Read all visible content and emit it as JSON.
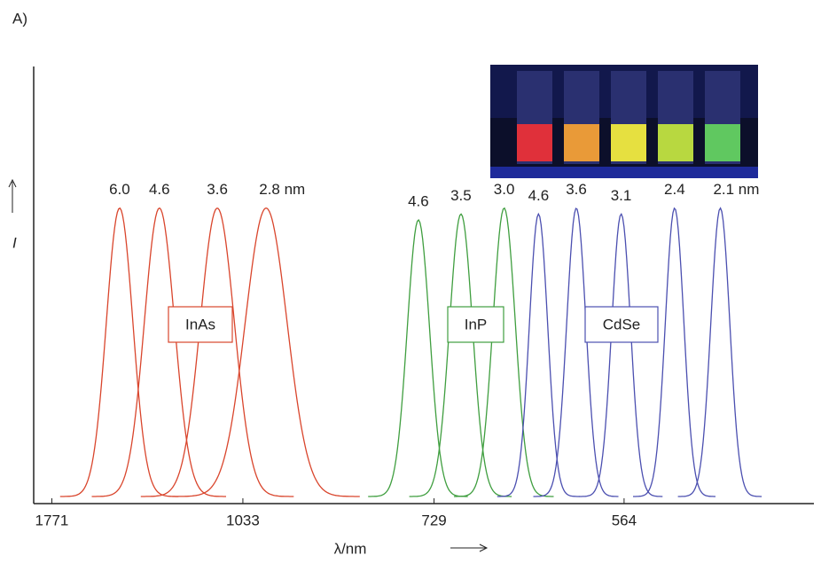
{
  "panel_label": "A)",
  "chart_data": {
    "type": "spectrum",
    "x_label": "λ/nm",
    "y_label": "I",
    "xscale": "reciprocal",
    "xlim": [
      1900,
      460
    ],
    "ylim": [
      0,
      1.2
    ],
    "xticks": [
      1771,
      1033,
      729,
      564
    ],
    "groups": [
      {
        "label": "InAs",
        "color": "#d9452c",
        "series": [
          {
            "name": "6.0",
            "peak": 1413,
            "fwhm": 131,
            "height": 1
          },
          {
            "name": "4.6",
            "peak": 1263,
            "fwhm": 119,
            "height": 1
          },
          {
            "name": "3.6",
            "peak": 1094,
            "fwhm": 101,
            "height": 1
          },
          {
            "name": "2.8 nm",
            "peak": 983,
            "fwhm": 100,
            "height": 1
          }
        ]
      },
      {
        "label": "InP",
        "color": "#3f9e3f",
        "series": [
          {
            "name": "4.6",
            "peak": 747,
            "fwhm": 31,
            "height": 0.96
          },
          {
            "name": "3.5",
            "peak": 700,
            "fwhm": 28,
            "height": 0.98
          },
          {
            "name": "3.0",
            "peak": 658,
            "fwhm": 24,
            "height": 1
          }
        ]
      },
      {
        "label": "CdSe",
        "color": "#4b4fb0",
        "series": [
          {
            "name": "4.6",
            "peak": 628,
            "fwhm": 18,
            "height": 0.98
          },
          {
            "name": "3.6",
            "peak": 598,
            "fwhm": 17,
            "height": 1
          },
          {
            "name": "3.1",
            "peak": 566,
            "fwhm": 15,
            "height": 0.98
          },
          {
            "name": "2.4",
            "peak": 532,
            "fwhm": 13,
            "height": 1
          },
          {
            "name": "2.1 nm",
            "peak": 506,
            "fwhm": 12,
            "height": 1
          }
        ]
      }
    ]
  }
}
